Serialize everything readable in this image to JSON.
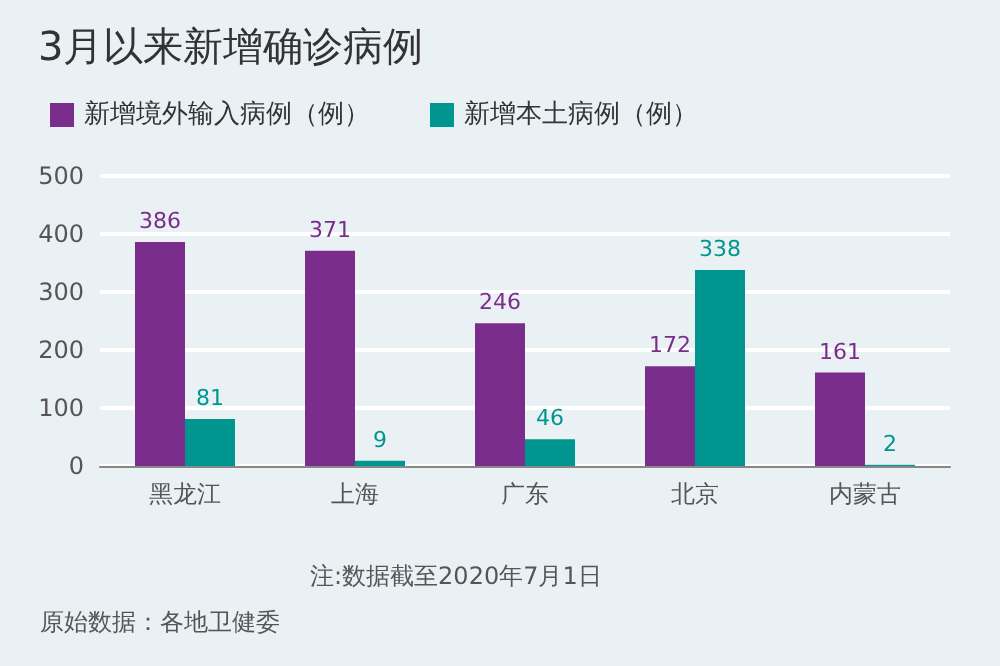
{
  "chart_data": {
    "type": "bar",
    "title": "3月以来新增确诊病例",
    "categories": [
      "黑龙江",
      "上海",
      "广东",
      "北京",
      "内蒙古"
    ],
    "series": [
      {
        "name": "新增境外输入病例（例）",
        "color": "#7b2d8b",
        "values": [
          386,
          371,
          246,
          172,
          161
        ]
      },
      {
        "name": "新增本土病例（例）",
        "color": "#00968f",
        "values": [
          81,
          9,
          46,
          338,
          2
        ]
      }
    ],
    "ylim": [
      0,
      500
    ],
    "yticks": [
      0,
      100,
      200,
      300,
      400,
      500
    ],
    "grid": "y",
    "legend": "top left",
    "data_labels": true,
    "annotations": [
      "注:数据截至2020年7月1日",
      "原始数据：各地卫健委"
    ]
  }
}
